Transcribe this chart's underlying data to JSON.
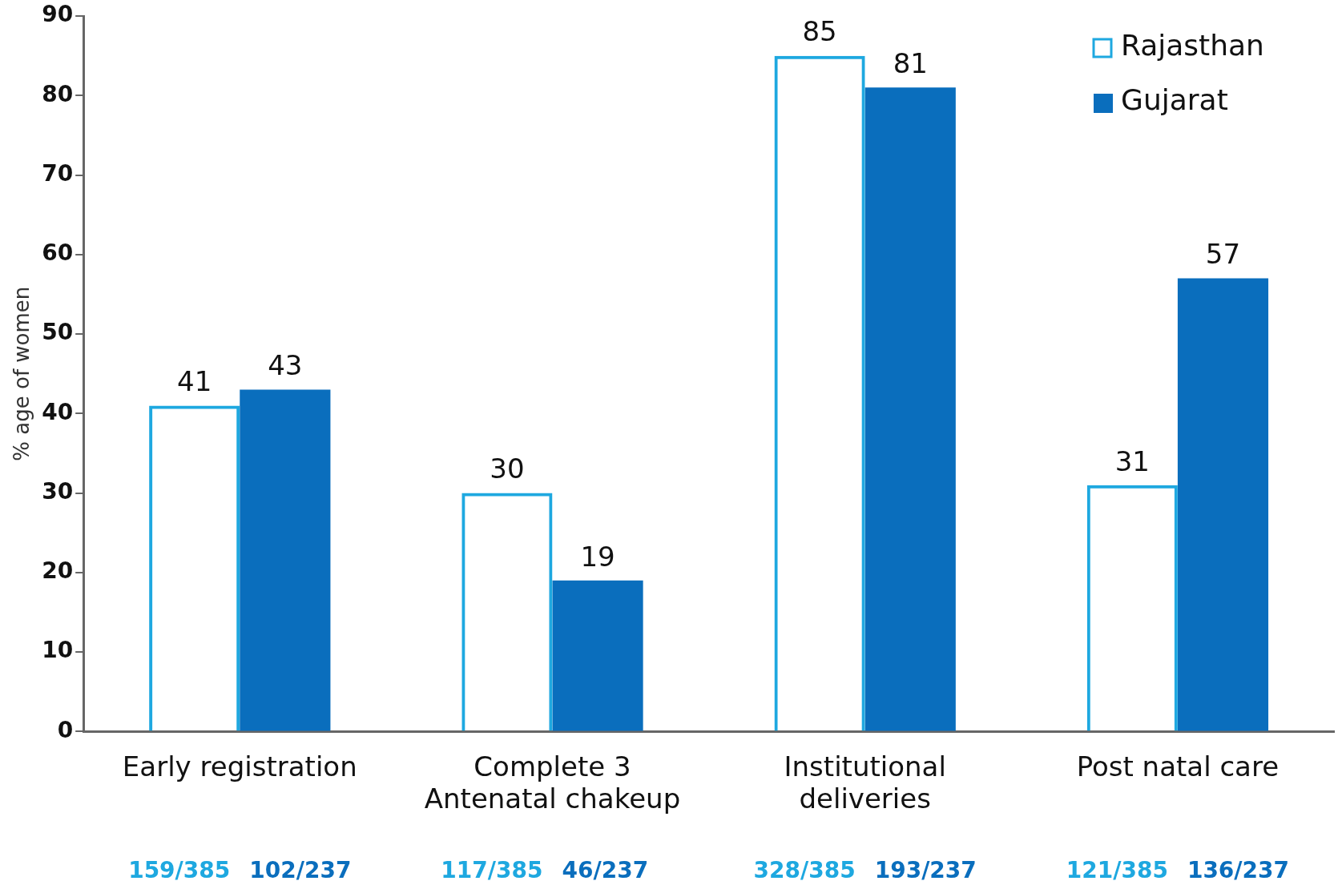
{
  "chart_data": {
    "type": "bar",
    "ylabel": "% age of women",
    "categories": [
      "Early registration",
      "Complete 3\nAntenatal chakeup",
      "Institutional\ndeliveries",
      "Post natal care"
    ],
    "series": [
      {
        "name": "Rajasthan",
        "color": "#1ea8e0",
        "values": [
          41,
          30,
          85,
          31
        ]
      },
      {
        "name": "Gujarat",
        "color": "#0a6ebd",
        "values": [
          43,
          19,
          81,
          57
        ]
      }
    ],
    "ylim": [
      0,
      90
    ],
    "yticks": [
      0,
      10,
      20,
      30,
      40,
      50,
      60,
      70,
      80,
      90
    ],
    "grid": false,
    "legend": "top right",
    "data_labels": true,
    "annotations": [
      "159/385",
      "102/237",
      "117/385",
      "46/237",
      "328/385",
      "193/237",
      "121/385",
      "136/237"
    ]
  }
}
